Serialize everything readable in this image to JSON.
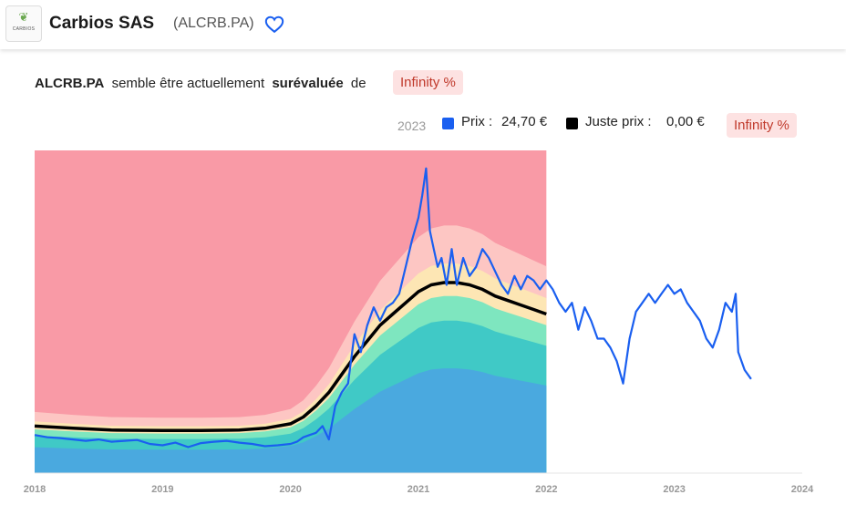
{
  "header": {
    "company": "Carbios SAS",
    "ticker": "(ALCRB.PA)",
    "logo_text": "CARBIOS",
    "logo_icon": "leaf-icon",
    "favorite_icon": "heart-icon"
  },
  "valuation": {
    "ticker": "ALCRB.PA",
    "text_before": "semble être actuellement",
    "status": "surévaluée",
    "text_after": "de",
    "percent": "Infinity %"
  },
  "legend": {
    "year": "2023",
    "price_label": "Prix :",
    "price_value": "24,70 €",
    "fair_label": "Juste prix :",
    "fair_value": "0,00 €",
    "percent": "Infinity %"
  },
  "colors": {
    "price": "#1a5ff0",
    "fair": "#000000",
    "overvalued_strong": "#f99aa6",
    "overvalued_light": "#fdc6c3",
    "overvalued_mild": "#fde6b4",
    "undervalued_mild": "#7ee6bf",
    "undervalued": "#40c9c6",
    "undervalued_strong": "#4aa9df",
    "badge_bg": "#fde2e2",
    "badge_text": "#c0392b"
  },
  "chart_data": {
    "type": "line",
    "x_ticks": [
      "2018",
      "2019",
      "2020",
      "2021",
      "2022",
      "2023",
      "2024"
    ],
    "xlim": [
      2018,
      2024
    ],
    "ylim": [
      0,
      72
    ],
    "series": [
      {
        "role": "price",
        "x": [
          2018.0,
          2018.1,
          2018.2,
          2018.3,
          2018.4,
          2018.5,
          2018.6,
          2018.7,
          2018.8,
          2018.9,
          2019.0,
          2019.1,
          2019.2,
          2019.3,
          2019.4,
          2019.5,
          2019.6,
          2019.7,
          2019.8,
          2019.9,
          2020.0,
          2020.05,
          2020.1,
          2020.15,
          2020.2,
          2020.25,
          2020.3,
          2020.35,
          2020.4,
          2020.45,
          2020.5,
          2020.55,
          2020.6,
          2020.65,
          2020.7,
          2020.75,
          2020.8,
          2020.85,
          2020.9,
          2020.95,
          2021.0,
          2021.03,
          2021.06,
          2021.09,
          2021.12,
          2021.15,
          2021.18,
          2021.22,
          2021.26,
          2021.3,
          2021.35,
          2021.4,
          2021.45,
          2021.5,
          2021.55,
          2021.6,
          2021.65,
          2021.7,
          2021.75,
          2021.8,
          2021.85,
          2021.9,
          2021.95,
          2022.0,
          2022.05,
          2022.1,
          2022.15,
          2022.2,
          2022.25,
          2022.3,
          2022.35,
          2022.4,
          2022.45,
          2022.5,
          2022.55,
          2022.6,
          2022.65,
          2022.7,
          2022.75,
          2022.8,
          2022.85,
          2022.9,
          2022.95,
          2023.0,
          2023.05,
          2023.1,
          2023.15,
          2023.2,
          2023.25,
          2023.3,
          2023.35,
          2023.4,
          2023.45,
          2023.48,
          2023.5,
          2023.55,
          2023.6
        ],
        "y": [
          8.5,
          8.0,
          7.8,
          7.5,
          7.2,
          7.5,
          7.0,
          7.2,
          7.4,
          6.5,
          6.2,
          6.8,
          5.8,
          6.7,
          7.0,
          7.2,
          6.8,
          6.5,
          6.0,
          6.2,
          6.5,
          7.0,
          8.0,
          8.5,
          9.0,
          10.5,
          7.5,
          15.0,
          18.0,
          20.0,
          31.0,
          27.0,
          33.0,
          37.0,
          34.0,
          37.0,
          38.0,
          40.0,
          46.0,
          52.0,
          57.0,
          62.0,
          68.0,
          54.0,
          50.0,
          46.0,
          48.0,
          42.0,
          50.0,
          42.0,
          48.0,
          44.0,
          46.0,
          50.0,
          48.0,
          45.0,
          42.0,
          40.0,
          44.0,
          41.0,
          44.0,
          43.0,
          41.0,
          43.0,
          41.0,
          38.0,
          36.0,
          38.0,
          32.0,
          37.0,
          34.0,
          30.0,
          30.0,
          28.0,
          25.0,
          20.0,
          30.0,
          36.0,
          38.0,
          40.0,
          38.0,
          40.0,
          42.0,
          40.0,
          41.0,
          38.0,
          36.0,
          34.0,
          30.0,
          28.0,
          32.0,
          38.0,
          36.0,
          40.0,
          27.0,
          23.0,
          21.0
        ]
      },
      {
        "role": "fair_value",
        "x": [
          2018.0,
          2018.3,
          2018.6,
          2019.0,
          2019.3,
          2019.6,
          2019.8,
          2020.0,
          2020.1,
          2020.2,
          2020.3,
          2020.4,
          2020.5,
          2020.6,
          2020.7,
          2020.8,
          2020.9,
          2021.0,
          2021.1,
          2021.2,
          2021.3,
          2021.4,
          2021.5,
          2021.6,
          2021.7,
          2021.8,
          2021.9,
          2022.0
        ],
        "y": [
          10.5,
          10.0,
          9.6,
          9.5,
          9.5,
          9.6,
          10.0,
          11.0,
          12.5,
          15.0,
          18.0,
          22.0,
          26.0,
          29.5,
          33.0,
          35.5,
          38.0,
          40.5,
          42.0,
          42.5,
          42.5,
          42.0,
          41.0,
          39.5,
          38.5,
          37.5,
          36.5,
          35.5
        ]
      }
    ],
    "bands_end_x": 2022.0,
    "bands_top": 72
  }
}
